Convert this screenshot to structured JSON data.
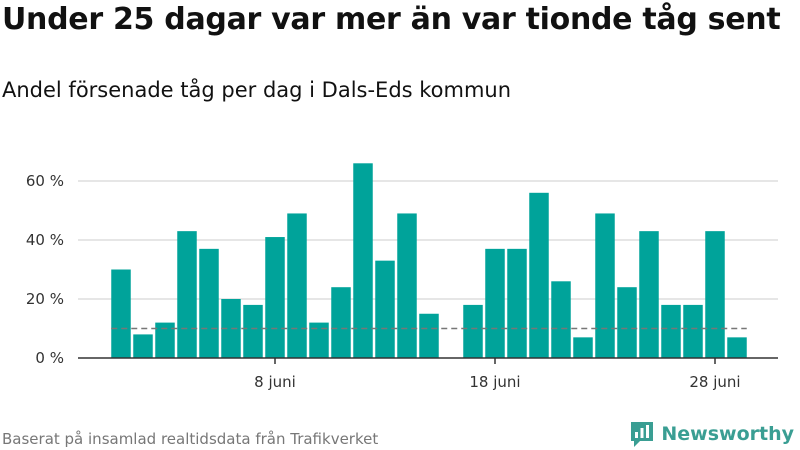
{
  "header": {
    "title": "Under 25 dagar var mer än var tionde tåg sent",
    "subtitle": "Andel försenade tåg per dag i Dals-Eds kommun"
  },
  "footer": {
    "source": "Baserat på insamlad realtidsdata från Trafikverket",
    "brand": "Newsworthy",
    "brand_icon": "bar-chart-speech-bubble-icon"
  },
  "colors": {
    "bar": "#00a39a",
    "reference_line": "#777777",
    "grid": "#dddddd",
    "axis": "#333333",
    "brand": "#3a9e93"
  },
  "chart_data": {
    "type": "bar",
    "x_type": "date",
    "x": [
      "2019-06-01",
      "2019-06-02",
      "2019-06-03",
      "2019-06-04",
      "2019-06-05",
      "2019-06-06",
      "2019-06-07",
      "2019-06-08",
      "2019-06-09",
      "2019-06-10",
      "2019-06-11",
      "2019-06-12",
      "2019-06-13",
      "2019-06-14",
      "2019-06-15",
      "2019-06-16",
      "2019-06-17",
      "2019-06-18",
      "2019-06-19",
      "2019-06-20",
      "2019-06-21",
      "2019-06-22",
      "2019-06-23",
      "2019-06-24",
      "2019-06-25",
      "2019-06-26",
      "2019-06-27",
      "2019-06-28",
      "2019-06-29",
      "2019-06-30"
    ],
    "values": [
      30,
      8,
      12,
      43,
      37,
      20,
      18,
      41,
      49,
      12,
      24,
      66,
      33,
      49,
      15,
      null,
      18,
      37,
      37,
      56,
      26,
      7,
      49,
      24,
      43,
      18,
      18,
      43,
      7,
      null
    ],
    "reference_line": {
      "value": 10,
      "style": "dashed"
    },
    "y_ticks": [
      0,
      20,
      40,
      60
    ],
    "y_tick_labels": [
      "0 %",
      "20 %",
      "40 %",
      "60 %"
    ],
    "y_unit": "%",
    "ylim": [
      0,
      70
    ],
    "x_tick_dates": [
      "2019-06-08",
      "2019-06-18",
      "2019-06-28"
    ],
    "x_tick_labels": [
      "8 juni",
      "18 juni",
      "28 juni"
    ],
    "grid": true,
    "legend": "none"
  }
}
